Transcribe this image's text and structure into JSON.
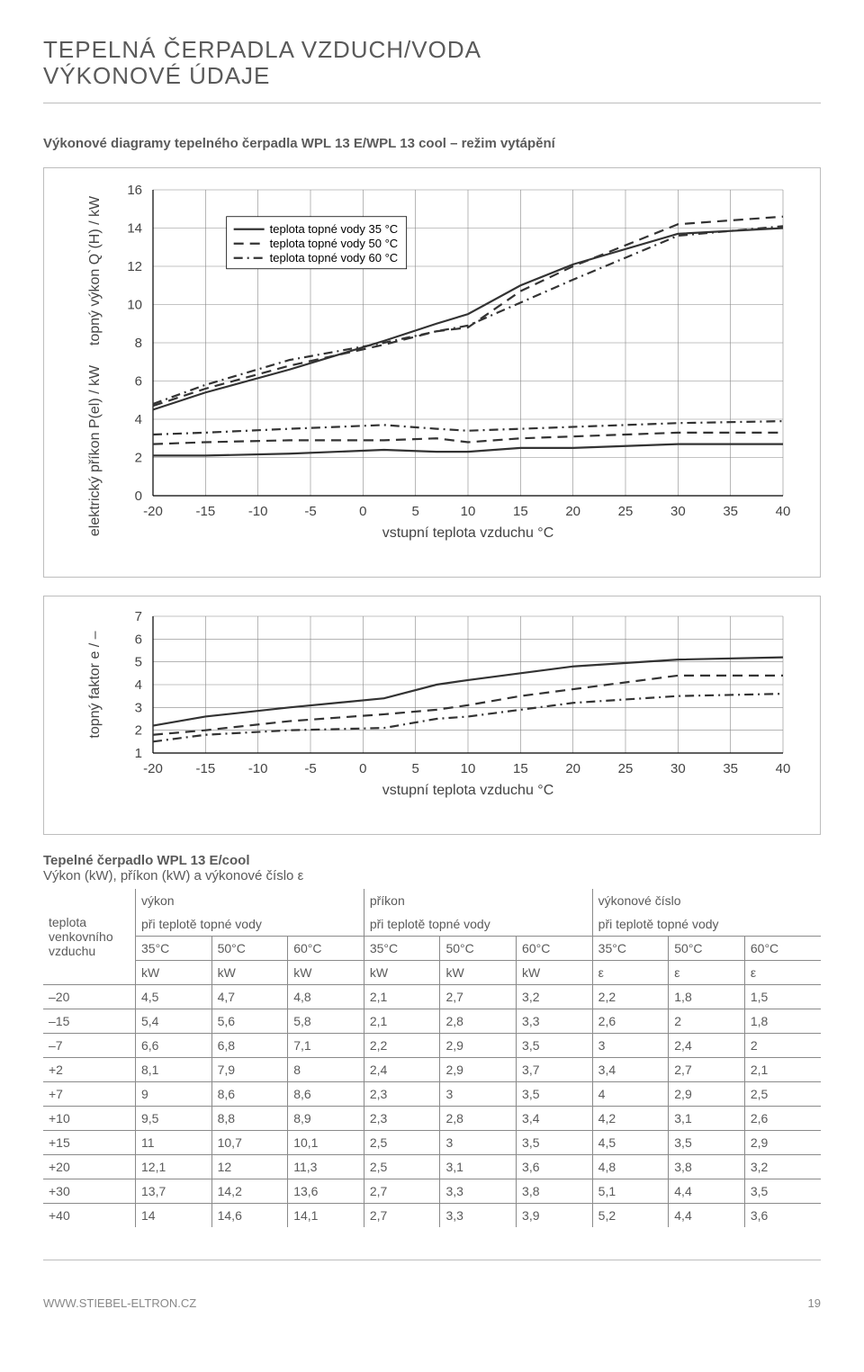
{
  "header": {
    "line1": "TEPELNÁ ČERPADLA VZDUCH/VODA",
    "line2": "VÝKONOVÉ ÚDAJE"
  },
  "subheader": "Výkonové diagramy tepelného čerpadla WPL 13 E/WPL 13 cool – režim vytápění",
  "chart1": {
    "type": "line",
    "x_label": "vstupní teplota vzduchu °C",
    "y_label_1": "elektrický příkon P(el) / kW",
    "y_label_2": "topný výkon Q`(H) / kW",
    "grid_color": "#888888",
    "axis_color": "#000000",
    "series_color": "#333333",
    "background_color": "#ffffff",
    "title_fontsize": 16,
    "tick_fontsize": 15,
    "legend_fontsize": 13,
    "xlim": [
      -20,
      40
    ],
    "ylim": [
      0,
      16
    ],
    "xtick_step": 5,
    "ytick_step": 2,
    "line_width": 2.2,
    "dash_pattern": "11 7",
    "dashdot_pattern": "10 5 2 5",
    "legend": [
      {
        "label": "teplota topné vody 35 °C",
        "style": "solid"
      },
      {
        "label": "teplota topné vody 50 °C",
        "style": "dash"
      },
      {
        "label": "teplota topné vody 60 °C",
        "style": "dashdot"
      }
    ],
    "top_series": {
      "35": [
        [
          -20,
          4.5
        ],
        [
          -15,
          5.4
        ],
        [
          -7,
          6.6
        ],
        [
          2,
          8.1
        ],
        [
          7,
          9.0
        ],
        [
          10,
          9.5
        ],
        [
          15,
          11.0
        ],
        [
          20,
          12.1
        ],
        [
          30,
          13.7
        ],
        [
          40,
          14.0
        ]
      ],
      "50": [
        [
          -20,
          4.7
        ],
        [
          -15,
          5.6
        ],
        [
          -7,
          6.8
        ],
        [
          2,
          7.9
        ],
        [
          7,
          8.6
        ],
        [
          10,
          8.8
        ],
        [
          15,
          10.7
        ],
        [
          20,
          12.0
        ],
        [
          30,
          14.2
        ],
        [
          40,
          14.6
        ]
      ],
      "60": [
        [
          -20,
          4.8
        ],
        [
          -15,
          5.8
        ],
        [
          -7,
          7.1
        ],
        [
          2,
          8.0
        ],
        [
          7,
          8.6
        ],
        [
          10,
          8.9
        ],
        [
          15,
          10.1
        ],
        [
          20,
          11.3
        ],
        [
          30,
          13.6
        ],
        [
          40,
          14.1
        ]
      ]
    },
    "bottom_series": {
      "35": [
        [
          -20,
          2.1
        ],
        [
          -15,
          2.1
        ],
        [
          -7,
          2.2
        ],
        [
          2,
          2.4
        ],
        [
          7,
          2.3
        ],
        [
          10,
          2.3
        ],
        [
          15,
          2.5
        ],
        [
          20,
          2.5
        ],
        [
          30,
          2.7
        ],
        [
          40,
          2.7
        ]
      ],
      "50": [
        [
          -20,
          2.7
        ],
        [
          -15,
          2.8
        ],
        [
          -7,
          2.9
        ],
        [
          2,
          2.9
        ],
        [
          7,
          3.0
        ],
        [
          10,
          2.8
        ],
        [
          15,
          3.0
        ],
        [
          20,
          3.1
        ],
        [
          30,
          3.3
        ],
        [
          40,
          3.3
        ]
      ],
      "60": [
        [
          -20,
          3.2
        ],
        [
          -15,
          3.3
        ],
        [
          -7,
          3.5
        ],
        [
          2,
          3.7
        ],
        [
          7,
          3.5
        ],
        [
          10,
          3.4
        ],
        [
          15,
          3.5
        ],
        [
          20,
          3.6
        ],
        [
          30,
          3.8
        ],
        [
          40,
          3.9
        ]
      ]
    }
  },
  "chart2": {
    "type": "line",
    "x_label": "vstupní teplota vzduchu °C",
    "y_label": "topný faktor e / –",
    "grid_color": "#888888",
    "axis_color": "#000000",
    "series_color": "#333333",
    "background_color": "#ffffff",
    "tick_fontsize": 15,
    "line_width": 2.2,
    "dash_pattern": "11 7",
    "dashdot_pattern": "10 5 2 5",
    "xlim": [
      -20,
      40
    ],
    "ylim": [
      1,
      7
    ],
    "xtick_step": 5,
    "ytick_step": 1,
    "series": {
      "35": [
        [
          -20,
          2.2
        ],
        [
          -15,
          2.6
        ],
        [
          -7,
          3.0
        ],
        [
          2,
          3.4
        ],
        [
          7,
          4.0
        ],
        [
          10,
          4.2
        ],
        [
          15,
          4.5
        ],
        [
          20,
          4.8
        ],
        [
          30,
          5.1
        ],
        [
          40,
          5.2
        ]
      ],
      "50": [
        [
          -20,
          1.8
        ],
        [
          -15,
          2.0
        ],
        [
          -7,
          2.4
        ],
        [
          2,
          2.7
        ],
        [
          7,
          2.9
        ],
        [
          10,
          3.1
        ],
        [
          15,
          3.5
        ],
        [
          20,
          3.8
        ],
        [
          30,
          4.4
        ],
        [
          40,
          4.4
        ]
      ],
      "60": [
        [
          -20,
          1.5
        ],
        [
          -15,
          1.8
        ],
        [
          -7,
          2.0
        ],
        [
          2,
          2.1
        ],
        [
          7,
          2.5
        ],
        [
          10,
          2.6
        ],
        [
          15,
          2.9
        ],
        [
          20,
          3.2
        ],
        [
          30,
          3.5
        ],
        [
          40,
          3.6
        ]
      ]
    }
  },
  "table": {
    "title": "Tepelné čerpadlo WPL 13 E/cool",
    "subtitle": "Výkon (kW), příkon (kW) a výkonové číslo ε",
    "rowhead_l1": "teplota",
    "rowhead_l2": "venkovního",
    "rowhead_l3": "vzduchu",
    "grouphead_a1": "výkon",
    "grouphead_a2": "při teplotě topné vody",
    "grouphead_b1": "příkon",
    "grouphead_b2": "při teplotě topné vody",
    "grouphead_c1": "výkonové číslo",
    "grouphead_c2": "při teplotě topné vody",
    "temps": [
      "35°C",
      "50°C",
      "60°C"
    ],
    "units": [
      "kW",
      "kW",
      "kW",
      "kW",
      "kW",
      "kW",
      "ε",
      "ε",
      "ε"
    ],
    "rows": [
      [
        "–20",
        "4,5",
        "4,7",
        "4,8",
        "2,1",
        "2,7",
        "3,2",
        "2,2",
        "1,8",
        "1,5"
      ],
      [
        "–15",
        "5,4",
        "5,6",
        "5,8",
        "2,1",
        "2,8",
        "3,3",
        "2,6",
        "2",
        "1,8"
      ],
      [
        "–7",
        "6,6",
        "6,8",
        "7,1",
        "2,2",
        "2,9",
        "3,5",
        "3",
        "2,4",
        "2"
      ],
      [
        "+2",
        "8,1",
        "7,9",
        "8",
        "2,4",
        "2,9",
        "3,7",
        "3,4",
        "2,7",
        "2,1"
      ],
      [
        "+7",
        "9",
        "8,6",
        "8,6",
        "2,3",
        "3",
        "3,5",
        "4",
        "2,9",
        "2,5"
      ],
      [
        "+10",
        "9,5",
        "8,8",
        "8,9",
        "2,3",
        "2,8",
        "3,4",
        "4,2",
        "3,1",
        "2,6"
      ],
      [
        "+15",
        "11",
        "10,7",
        "10,1",
        "2,5",
        "3",
        "3,5",
        "4,5",
        "3,5",
        "2,9"
      ],
      [
        "+20",
        "12,1",
        "12",
        "11,3",
        "2,5",
        "3,1",
        "3,6",
        "4,8",
        "3,8",
        "3,2"
      ],
      [
        "+30",
        "13,7",
        "14,2",
        "13,6",
        "2,7",
        "3,3",
        "3,8",
        "5,1",
        "4,4",
        "3,5"
      ],
      [
        "+40",
        "14",
        "14,6",
        "14,1",
        "2,7",
        "3,3",
        "3,9",
        "5,2",
        "4,4",
        "3,6"
      ]
    ]
  },
  "footer": {
    "url": "WWW.STIEBEL-ELTRON.CZ",
    "page": "19"
  }
}
